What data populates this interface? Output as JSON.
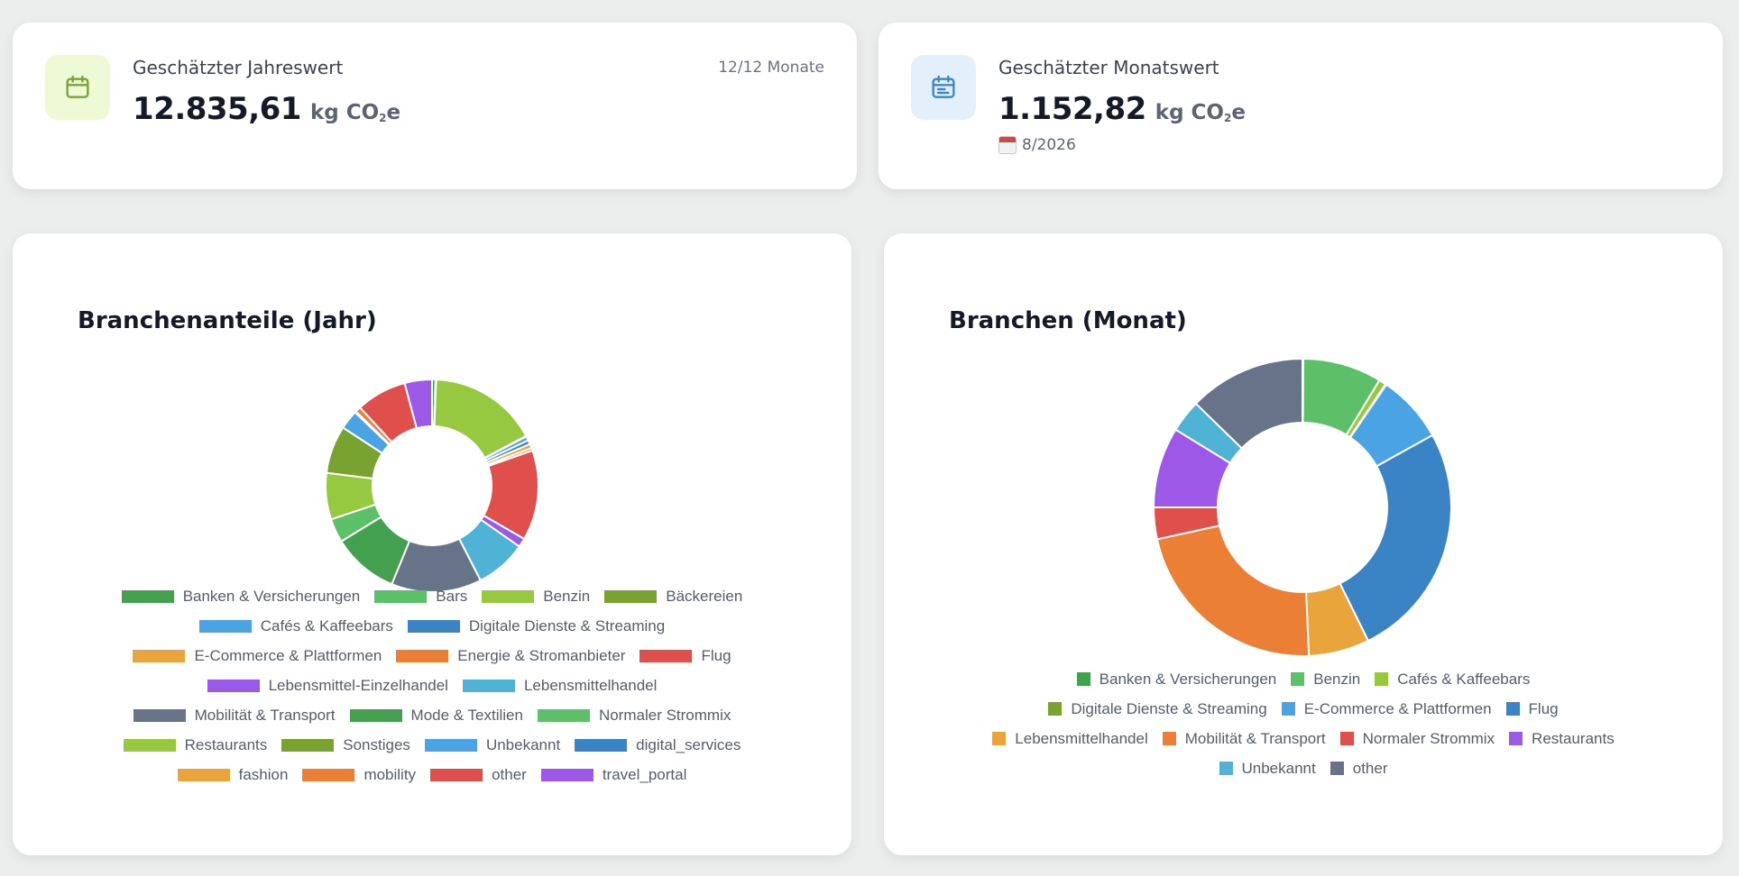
{
  "year_card": {
    "label": "Geschätzter Jahreswert",
    "value": "12.835,61",
    "unit_prefix": "kg CO",
    "unit_sub": "2",
    "unit_suffix": "e",
    "months_note": "12/12 Monate",
    "icon": "calendar-icon",
    "icon_color": "#7aa13a",
    "icon_bg": "#eefad6"
  },
  "month_card": {
    "label": "Geschätzter Monatswert",
    "value": "1.152,82",
    "unit_prefix": "kg CO",
    "unit_sub": "2",
    "unit_suffix": "e",
    "period_note": "8/2026",
    "icon": "calendar-detail-icon",
    "icon_color": "#3b86c8",
    "icon_bg": "#e3f0fc"
  },
  "chart_data": [
    {
      "type": "pie",
      "title": "Branchenanteile (Jahr)",
      "donut": true,
      "legend_position": "bottom",
      "categories": [
        "Banken & Versicherungen",
        "Bars",
        "Benzin",
        "Bäckereien",
        "Cafés & Kaffeebars",
        "Digitale Dienste & Streaming",
        "E-Commerce & Plattformen",
        "Energie & Stromanbieter",
        "Flug",
        "Lebensmittel-Einzelhandel",
        "Lebensmittelhandel",
        "Mobilität & Transport",
        "Mode & Textilien",
        "Normaler Strommix",
        "Restaurants",
        "Sonstiges",
        "Unbekannt",
        "digital_services",
        "fashion",
        "mobility",
        "other",
        "travel_portal"
      ],
      "values": [
        0.5,
        0.1,
        16,
        0.1,
        0.6,
        0.6,
        0.6,
        0.4,
        13.2,
        1.3,
        7.5,
        13.2,
        9.7,
        3.5,
        6.8,
        7.0,
        2.8,
        0.1,
        0.1,
        0.8,
        7.4,
        4.0
      ],
      "colors": [
        "#43a04f",
        "#5cc068",
        "#97c940",
        "#78a331",
        "#4aa3e2",
        "#3a84c6",
        "#e9a43c",
        "#ea7f35",
        "#df4f4b",
        "#9c59e8",
        "#4fb3d6",
        "#667389",
        "#43a04f",
        "#5cc068",
        "#97c940",
        "#78a331",
        "#4aa3e2",
        "#3a84c6",
        "#e9a43c",
        "#ea7f35",
        "#df4f4b",
        "#9c59e8"
      ],
      "legend_rows": [
        4,
        2,
        3,
        2,
        3,
        4,
        4
      ]
    },
    {
      "type": "pie",
      "title": "Branchen (Monat)",
      "donut": true,
      "legend_position": "bottom",
      "categories": [
        "Banken & Versicherungen",
        "Benzin",
        "Cafés & Kaffeebars",
        "Digitale Dienste & Streaming",
        "E-Commerce & Plattformen",
        "Flug",
        "Lebensmittelhandel",
        "Mobilität & Transport",
        "Normaler Strommix",
        "Restaurants",
        "Unbekannt",
        "other"
      ],
      "values": [
        0.1,
        8.7,
        0.8,
        0.1,
        7.5,
        26.2,
        6.7,
        22.6,
        3.5,
        8.9,
        3.6,
        12.9
      ],
      "colors": [
        "#43a04f",
        "#5cc068",
        "#97c940",
        "#78a331",
        "#4aa3e2",
        "#3a84c6",
        "#e9a43c",
        "#ea7f35",
        "#df4f4b",
        "#9c59e8",
        "#4fb3d6",
        "#667389"
      ],
      "legend_rows": [
        3,
        3,
        4,
        2
      ]
    }
  ]
}
